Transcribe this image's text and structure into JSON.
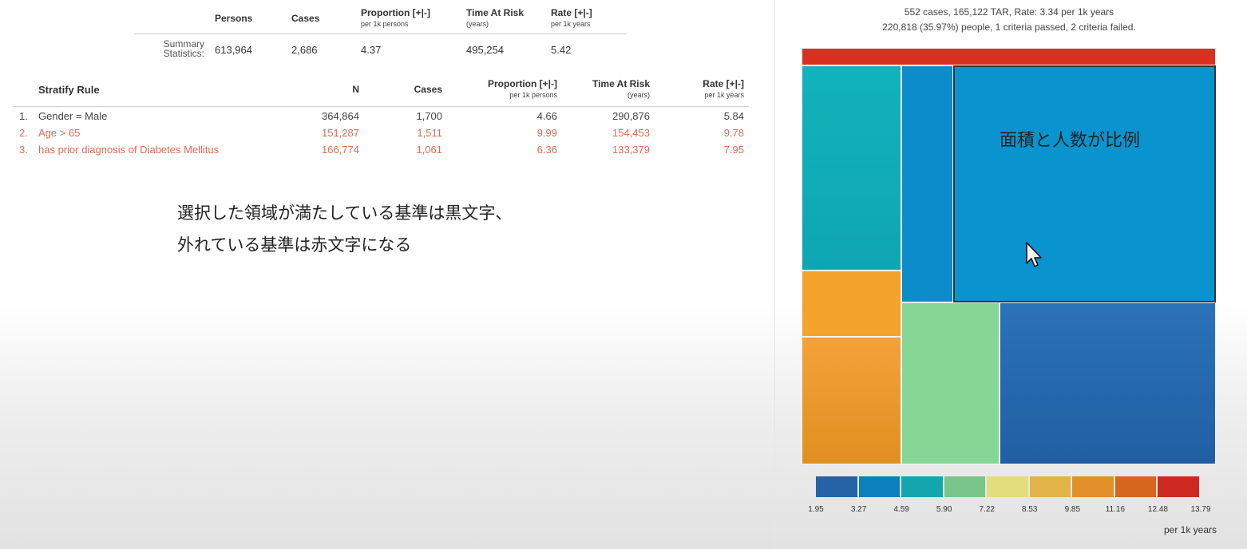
{
  "summary": {
    "headers": {
      "persons": "Persons",
      "cases": "Cases",
      "proportion": "Proportion [+|-]",
      "proportion_sub": "per 1k persons",
      "tar": "Time At Risk",
      "tar_sub": "(years)",
      "rate": "Rate [+|-]",
      "rate_sub": "per 1k years"
    },
    "label_line1": "Summary",
    "label_line2": "Statistics:",
    "values": {
      "persons": "613,964",
      "cases": "2,686",
      "proportion": "4.37",
      "tar": "495,254",
      "rate": "5.42"
    }
  },
  "stratify": {
    "headers": {
      "rule": "Stratify Rule",
      "n": "N",
      "cases": "Cases",
      "proportion": "Proportion [+|-]",
      "proportion_sub": "per 1k persons",
      "tar": "Time At Risk",
      "tar_sub": "(years)",
      "rate": "Rate [+|-]",
      "rate_sub": "per 1k years"
    },
    "rows": [
      {
        "index": "1.",
        "rule": "Gender = Male",
        "n": "364,864",
        "cases": "1,700",
        "proportion": "4.66",
        "tar": "290,876",
        "rate": "5.84",
        "status": "pass"
      },
      {
        "index": "2.",
        "rule": "Age > 65",
        "n": "151,287",
        "cases": "1,511",
        "proportion": "9.99",
        "tar": "154,453",
        "rate": "9.78",
        "status": "fail"
      },
      {
        "index": "3.",
        "rule": "has prior diagnosis of Diabetes Mellitus",
        "n": "166,774",
        "cases": "1,061",
        "proportion": "6.36",
        "tar": "133,379",
        "rate": "7.95",
        "status": "fail"
      }
    ]
  },
  "annotation": {
    "line1": "選択した領域が満たしている基準は黒文字、",
    "line2": "外れている基準は赤文字になる"
  },
  "treemap": {
    "info_line1": "552 cases, 165,122 TAR, Rate: 3.34 per 1k years",
    "info_line2": "220,818 (35.97%) people, 1 criteria passed, 2 criteria failed.",
    "overlay_text": "面積と人数が比例"
  },
  "legend": {
    "colors": [
      "#2563a6",
      "#0b80bd",
      "#13a6ae",
      "#79c58a",
      "#e3dd7c",
      "#e2b346",
      "#e1902a",
      "#d4661d",
      "#cc2a20"
    ],
    "labels": [
      "1.95",
      "3.27",
      "4.59",
      "5.90",
      "7.22",
      "8.53",
      "9.85",
      "11.16",
      "12.48",
      "13.79"
    ],
    "unit": "per 1k years"
  }
}
